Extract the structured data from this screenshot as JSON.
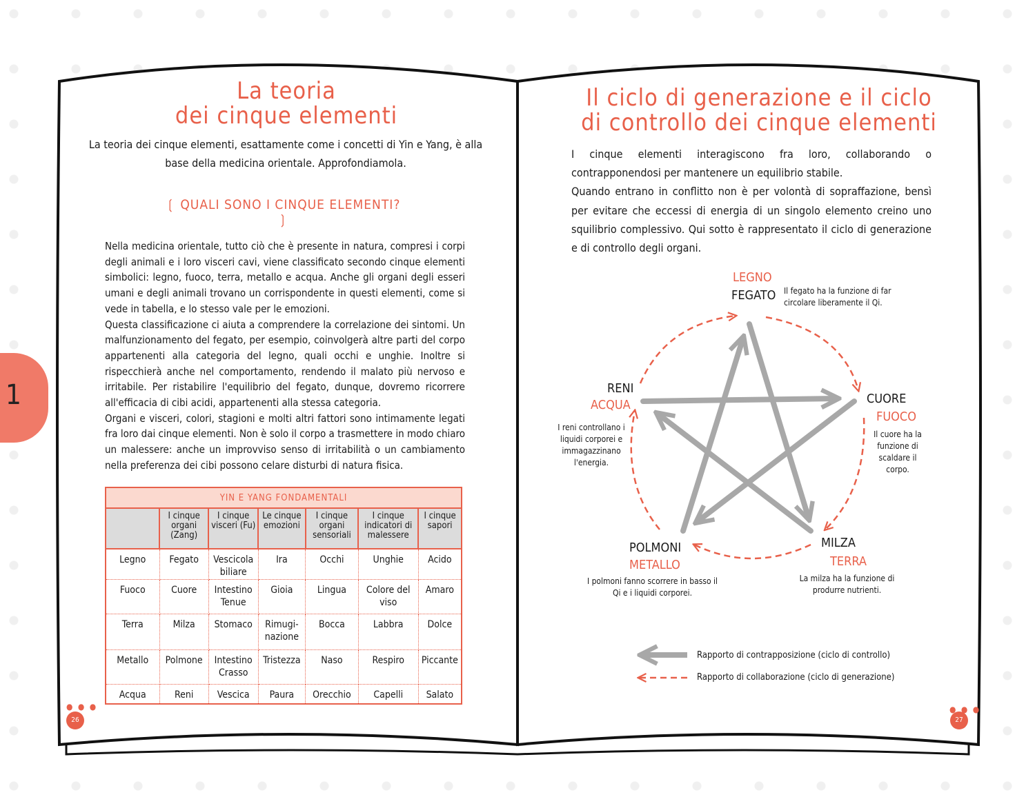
{
  "colors": {
    "accent": "#e8604a",
    "gray_arrow": "#a8a8a8",
    "table_header": "#dcdcdc",
    "table_caption_bg": "#fbd9cf"
  },
  "left": {
    "chapter_tab": "1",
    "title_line1": "La teoria",
    "title_line2": "dei cinque elementi",
    "lead": "La teoria dei cinque elementi, esattamente come i concetti di Yin e Yang, è alla base della medicina orientale. Approfondiamola.",
    "subtitle": "QUALI SONO I CINQUE ELEMENTI?",
    "paragraphs": [
      "Nella medicina orientale, tutto ciò che è presente in natura, compresi i corpi degli animali e i loro visceri cavi, viene classificato secondo cinque elementi simbolici: legno, fuoco, terra, metallo e acqua. Anche gli organi degli esseri umani e degli animali trovano un corrispondente in questi elementi, come si vede in tabella, e lo stesso vale per le emozioni.",
      "Questa classificazione ci aiuta a comprendere la correlazione dei sintomi. Un malfunzionamento del fegato, per esempio, coinvolgerà altre parti del corpo appartenenti alla categoria del legno, quali occhi e unghie. Inoltre si rispecchierà anche nel comportamento, rendendo il malato più nervoso e irritabile. Per ristabilire l'equilibrio del fegato, dunque, dovremo ricorrere all'efficacia di cibi acidi, appartenenti alla stessa categoria.",
      "Organi e visceri, colori, stagioni e molti altri fattori sono intimamente legati fra loro dai cinque elementi. Non è solo il corpo a trasmettere in modo chiaro un malessere: anche un improvviso senso di irritabilità o un cambiamento nella preferenza dei cibi possono celare disturbi di natura fisica."
    ],
    "table": {
      "caption": "YIN E YANG FONDAMENTALI",
      "headers": [
        "",
        "I cinque organi (Zang)",
        "I cinque visceri (Fu)",
        "Le cinque emozioni",
        "I cinque organi sensoriali",
        "I cinque indicatori di malessere",
        "I cinque sapori"
      ],
      "rows": [
        [
          "Legno",
          "Fegato",
          "Vescicola biliare",
          "Ira",
          "Occhi",
          "Unghie",
          "Acido"
        ],
        [
          "Fuoco",
          "Cuore",
          "Intestino Tenue",
          "Gioia",
          "Lingua",
          "Colore del viso",
          "Amaro"
        ],
        [
          "Terra",
          "Milza",
          "Stomaco",
          "Rimugi-nazione",
          "Bocca",
          "Labbra",
          "Dolce"
        ],
        [
          "Metallo",
          "Polmone",
          "Intestino Crasso",
          "Tristezza",
          "Naso",
          "Respiro",
          "Piccante"
        ],
        [
          "Acqua",
          "Reni",
          "Vescica",
          "Paura",
          "Orecchio",
          "Capelli",
          "Salato"
        ]
      ]
    },
    "page_number": "26"
  },
  "right": {
    "title_line1": "Il ciclo di generazione e il ciclo",
    "title_line2": "di controllo dei cinque elementi",
    "intro": [
      "I cinque elementi interagiscono fra loro, collaborando o contrapponendosi per mantenere un equilibrio stabile.",
      "Quando entrano in conflitto non è per volontà di sopraffazione, bensì per evitare che eccessi di energia di un singolo elemento creino uno squilibrio complessivo. Qui sotto è rappresentato il ciclo di generazione e di controllo degli organi."
    ],
    "diagram": {
      "nodes": [
        {
          "element": "LEGNO",
          "organ": "FEGATO",
          "note": "Il fegato ha la funzione di far circolare liberamente il Qi."
        },
        {
          "element": "FUOCO",
          "organ": "CUORE",
          "note": "Il cuore ha la funzione di scaldare il corpo."
        },
        {
          "element": "TERRA",
          "organ": "MILZA",
          "note": "La milza ha la funzione di produrre nutrienti."
        },
        {
          "element": "METALLO",
          "organ": "POLMONI",
          "note": "I polmoni fanno scorrere in basso il Qi e i liquidi corporei."
        },
        {
          "element": "ACQUA",
          "organ": "RENI",
          "note": "I reni controllano i liquidi corporei e immagazzinano l'energia."
        }
      ],
      "legend": [
        {
          "style": "solid-gray",
          "label": "Rapporto di contrapposizione (ciclo di controllo)"
        },
        {
          "style": "dashed-red",
          "label": "Rapporto di collaborazione (ciclo di generazione)"
        }
      ]
    },
    "page_number": "27"
  }
}
